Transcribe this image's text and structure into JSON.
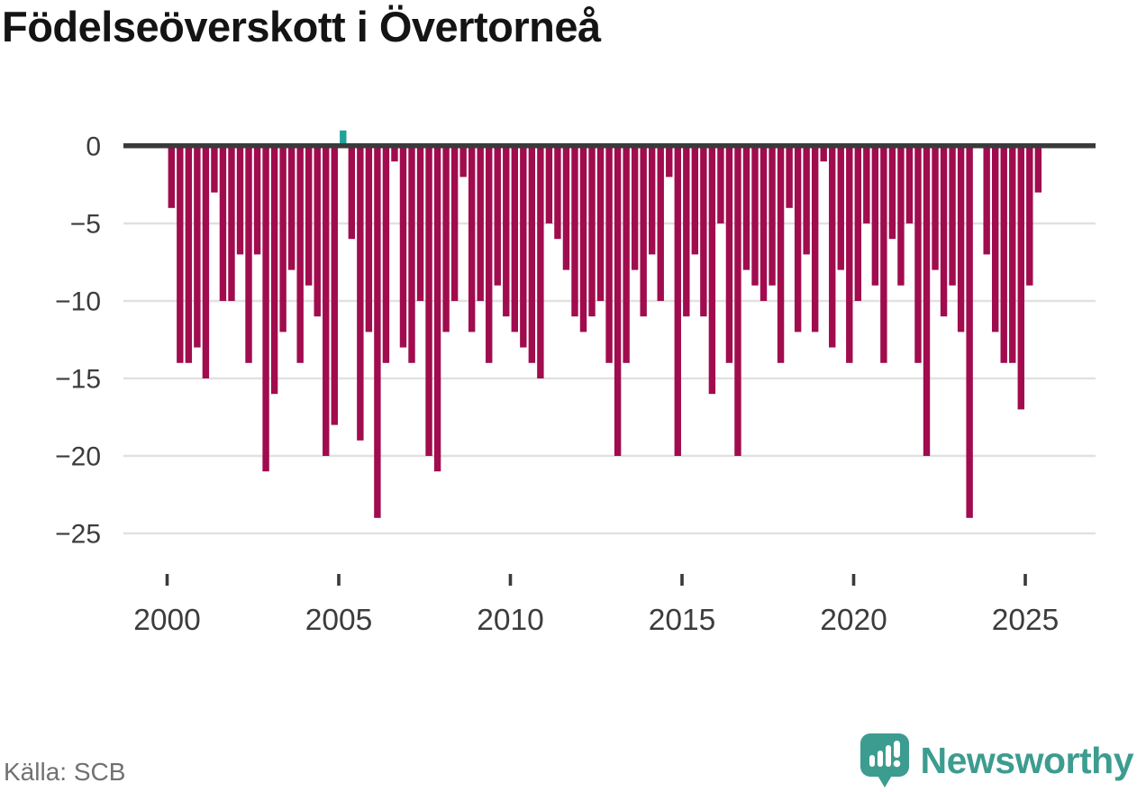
{
  "chart_data": {
    "type": "bar",
    "title": "Födelseöverskott i Övertorneå",
    "x_unit": "quarter",
    "categories": [
      "2000 Q1",
      "2000 Q2",
      "2000 Q3",
      "2000 Q4",
      "2001 Q1",
      "2001 Q2",
      "2001 Q3",
      "2001 Q4",
      "2002 Q1",
      "2002 Q2",
      "2002 Q3",
      "2002 Q4",
      "2003 Q1",
      "2003 Q2",
      "2003 Q3",
      "2003 Q4",
      "2004 Q1",
      "2004 Q2",
      "2004 Q3",
      "2004 Q4",
      "2005 Q1",
      "2005 Q2",
      "2005 Q3",
      "2005 Q4",
      "2006 Q1",
      "2006 Q2",
      "2006 Q3",
      "2006 Q4",
      "2007 Q1",
      "2007 Q2",
      "2007 Q3",
      "2007 Q4",
      "2008 Q1",
      "2008 Q2",
      "2008 Q3",
      "2008 Q4",
      "2009 Q1",
      "2009 Q2",
      "2009 Q3",
      "2009 Q4",
      "2010 Q1",
      "2010 Q2",
      "2010 Q3",
      "2010 Q4",
      "2011 Q1",
      "2011 Q2",
      "2011 Q3",
      "2011 Q4",
      "2012 Q1",
      "2012 Q2",
      "2012 Q3",
      "2012 Q4",
      "2013 Q1",
      "2013 Q2",
      "2013 Q3",
      "2013 Q4",
      "2014 Q1",
      "2014 Q2",
      "2014 Q3",
      "2014 Q4",
      "2015 Q1",
      "2015 Q2",
      "2015 Q3",
      "2015 Q4",
      "2016 Q1",
      "2016 Q2",
      "2016 Q3",
      "2016 Q4",
      "2017 Q1",
      "2017 Q2",
      "2017 Q3",
      "2017 Q4",
      "2018 Q1",
      "2018 Q2",
      "2018 Q3",
      "2018 Q4",
      "2019 Q1",
      "2019 Q2",
      "2019 Q3",
      "2019 Q4",
      "2020 Q1",
      "2020 Q2",
      "2020 Q3",
      "2020 Q4",
      "2021 Q1",
      "2021 Q2",
      "2021 Q3",
      "2021 Q4",
      "2022 Q1",
      "2022 Q2",
      "2022 Q3",
      "2022 Q4",
      "2023 Q1",
      "2023 Q2",
      "2023 Q3",
      "2023 Q4",
      "2024 Q1",
      "2024 Q2",
      "2024 Q3",
      "2024 Q4",
      "2025 Q1",
      "2025 Q2"
    ],
    "values": [
      -4,
      -14,
      -14,
      -13,
      -15,
      -3,
      -10,
      -10,
      -7,
      -14,
      -7,
      -21,
      -16,
      -12,
      -8,
      -14,
      -9,
      -11,
      -20,
      -18,
      1,
      -6,
      -19,
      -12,
      -24,
      -14,
      -1,
      -13,
      -14,
      -10,
      -20,
      -21,
      -12,
      -10,
      -2,
      -12,
      -10,
      -14,
      -9,
      -11,
      -12,
      -13,
      -14,
      -15,
      -5,
      -6,
      -8,
      -11,
      -12,
      -11,
      -10,
      -14,
      -20,
      -14,
      -8,
      -11,
      -7,
      -10,
      -2,
      -20,
      -11,
      -7,
      -11,
      -16,
      -5,
      -14,
      -20,
      -8,
      -9,
      -10,
      -9,
      -14,
      -4,
      -12,
      -7,
      -12,
      -1,
      -13,
      -8,
      -14,
      -10,
      -5,
      -9,
      -14,
      -6,
      -9,
      -5,
      -14,
      -20,
      -8,
      -11,
      -9,
      -12,
      -24,
      0,
      -7,
      -12,
      -14,
      -14,
      -17,
      -9,
      -3
    ],
    "y_axis": {
      "ticks": [
        0,
        -5,
        -10,
        -15,
        -20,
        -25
      ],
      "tick_labels": [
        "0",
        "−5",
        "−10",
        "−15",
        "−20",
        "−25"
      ],
      "ylim": [
        -25,
        1
      ],
      "grid": "horizontal"
    },
    "x_axis": {
      "ticks": [
        2000,
        2005,
        2010,
        2015,
        2020,
        2025
      ],
      "tick_labels": [
        "2000",
        "2005",
        "2010",
        "2015",
        "2020",
        "2025"
      ]
    },
    "legend": "none",
    "colors": {
      "negative": "#a00c4e",
      "positive": "#1fa39a",
      "axis_line": "#3a3a3a",
      "axis_text": "#3c3c3c",
      "grid": "#e1e1e1"
    }
  },
  "footer": {
    "source": "Källa: SCB",
    "brand": "Newsworthy",
    "brand_color": "#3d9c90"
  }
}
